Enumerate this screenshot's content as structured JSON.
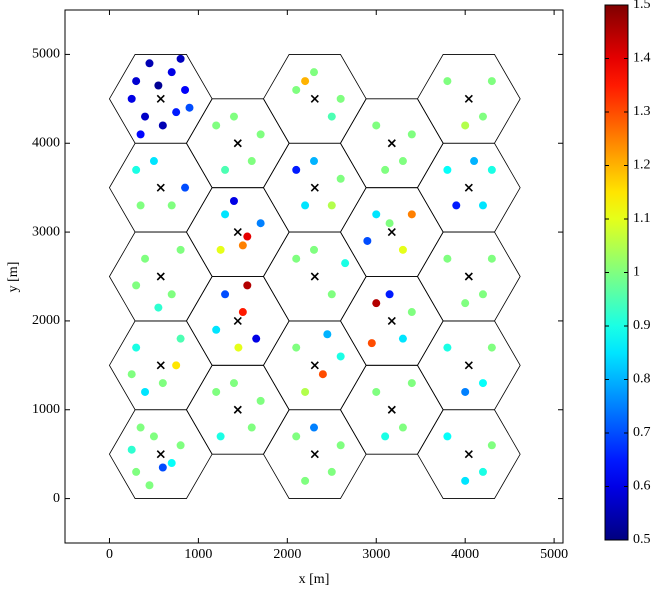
{
  "chart_data": {
    "type": "scatter",
    "xlabel": "x [m]",
    "ylabel": "y [m]",
    "xlim": [
      -500,
      5100
    ],
    "ylim": [
      -500,
      5500
    ],
    "xticks": [
      0,
      1000,
      2000,
      3000,
      4000,
      5000
    ],
    "yticks": [
      0,
      1000,
      2000,
      3000,
      4000,
      5000
    ],
    "colormap": "jet",
    "clim": [
      0.5,
      1.5
    ],
    "cticks": [
      0.5,
      0.6,
      0.7,
      0.8,
      0.9,
      1,
      1.1,
      1.2,
      1.3,
      1.4,
      1.5
    ],
    "cells": {
      "x": [
        577,
        577,
        577,
        577,
        577,
        1443,
        1443,
        1443,
        1443,
        2309,
        2309,
        2309,
        2309,
        2309,
        3175,
        3175,
        3175,
        3175,
        4041,
        4041,
        4041,
        4041,
        4041
      ],
      "y": [
        500,
        1500,
        2500,
        3500,
        4500,
        1000,
        2000,
        3000,
        4000,
        500,
        1500,
        2500,
        3500,
        4500,
        1000,
        2000,
        3000,
        4000,
        500,
        1500,
        2500,
        3500,
        4500
      ]
    },
    "x": [
      300,
      450,
      700,
      850,
      400,
      600,
      250,
      750,
      550,
      900,
      350,
      800,
      300,
      500,
      700,
      450,
      800,
      250,
      600,
      350,
      300,
      600,
      800,
      400,
      750,
      250,
      400,
      700,
      300,
      800,
      550,
      300,
      700,
      500,
      850,
      350,
      1200,
      1600,
      1400,
      1700,
      1250,
      1300,
      1500,
      1650,
      1200,
      1450,
      1550,
      1300,
      1500,
      1700,
      1250,
      1550,
      1400,
      1200,
      1600,
      1400,
      1700,
      1300,
      2100,
      2500,
      2300,
      2600,
      2200,
      2100,
      2400,
      2600,
      2200,
      2450,
      2100,
      2500,
      2300,
      2650,
      2100,
      2500,
      2300,
      2600,
      2200,
      2100,
      2500,
      2300,
      2200,
      2600,
      3000,
      3300,
      3400,
      3100,
      3000,
      3300,
      2950,
      3400,
      3150,
      3000,
      3300,
      3400,
      2900,
      3150,
      3000,
      3300,
      3400,
      3100,
      3800,
      4200,
      4300,
      4000,
      3800,
      4200,
      4300,
      4000,
      3800,
      4200,
      4300,
      4000,
      3800,
      4200,
      4300,
      3900,
      4100,
      3800,
      4200,
      4300,
      4000
    ],
    "y": [
      4700,
      4900,
      4800,
      4600,
      4300,
      4200,
      4500,
      4350,
      4650,
      4400,
      4100,
      4950,
      300,
      700,
      400,
      150,
      600,
      550,
      350,
      800,
      1700,
      1300,
      1800,
      1200,
      1500,
      1400,
      2700,
      2300,
      2400,
      2800,
      2150,
      3700,
      3300,
      3800,
      3500,
      3300,
      1200,
      800,
      1300,
      1100,
      700,
      2300,
      2100,
      1800,
      1900,
      1700,
      2400,
      3200,
      2850,
      3100,
      2800,
      2950,
      3350,
      4200,
      3800,
      4300,
      4100,
      3700,
      700,
      300,
      800,
      600,
      200,
      1700,
      1400,
      1600,
      1200,
      1850,
      2700,
      2300,
      2800,
      2650,
      3700,
      3300,
      3800,
      3600,
      3300,
      4600,
      4300,
      4800,
      4700,
      4500,
      1200,
      800,
      1300,
      700,
      2200,
      1800,
      1750,
      2100,
      2300,
      3200,
      2800,
      3200,
      2900,
      3100,
      4200,
      3800,
      4100,
      3700,
      700,
      300,
      600,
      200,
      1700,
      1300,
      1700,
      1200,
      2700,
      2300,
      2700,
      2200,
      3700,
      3300,
      3700,
      3300,
      3800,
      4700,
      4300,
      4700,
      4200
    ],
    "values": [
      0.58,
      0.55,
      0.6,
      0.62,
      0.57,
      0.55,
      0.6,
      0.65,
      0.52,
      0.7,
      0.63,
      0.56,
      1,
      1,
      0.88,
      1,
      1,
      0.92,
      0.7,
      1,
      0.9,
      1,
      0.95,
      0.85,
      1.15,
      1,
      1,
      1,
      1,
      1,
      0.92,
      0.9,
      1,
      0.85,
      0.7,
      1,
      1,
      1,
      1,
      1,
      0.9,
      0.7,
      1.35,
      0.6,
      0.85,
      1.1,
      1.45,
      0.85,
      1.25,
      0.75,
      1.1,
      1.4,
      0.6,
      1,
      1,
      1,
      1,
      0.95,
      1,
      1,
      0.75,
      1,
      1,
      1,
      1.3,
      0.9,
      1.05,
      0.8,
      1,
      1,
      1,
      0.9,
      0.65,
      1.05,
      0.8,
      1,
      0.85,
      1,
      0.95,
      1,
      1.2,
      1,
      1,
      1,
      1,
      0.9,
      1.45,
      0.85,
      1.3,
      1,
      0.65,
      0.85,
      1.1,
      1.25,
      0.7,
      1,
      1,
      1,
      1,
      1,
      0.88,
      0.9,
      1,
      0.85,
      0.9,
      0.88,
      1,
      0.75,
      1,
      1,
      1,
      1,
      0.88,
      0.85,
      0.9,
      0.65,
      0.8,
      1,
      1,
      1,
      1.05
    ]
  }
}
